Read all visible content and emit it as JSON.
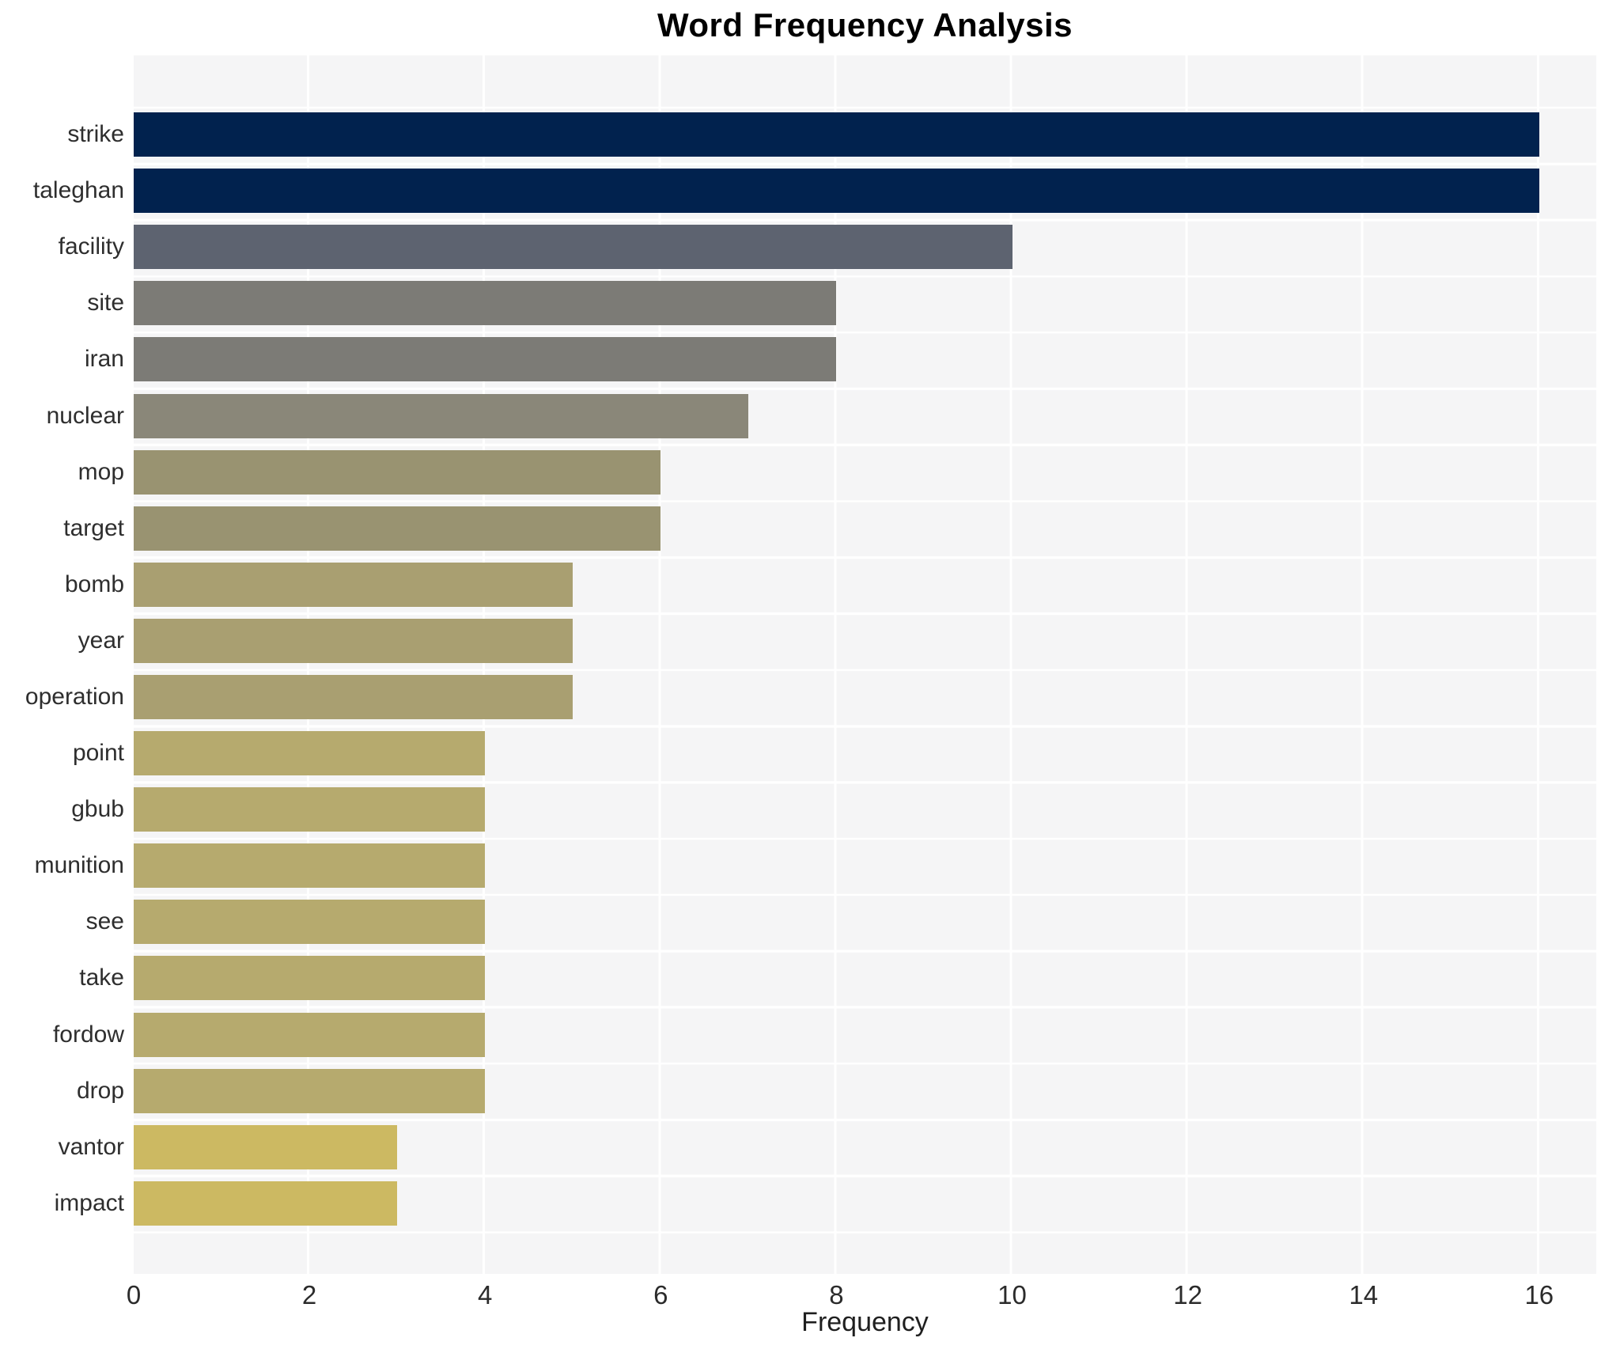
{
  "title": "Word Frequency Analysis",
  "chart_data": {
    "type": "bar",
    "orientation": "horizontal",
    "title": "Word Frequency Analysis",
    "xlabel": "Frequency",
    "ylabel": "",
    "categories": [
      "strike",
      "taleghan",
      "facility",
      "site",
      "iran",
      "nuclear",
      "mop",
      "target",
      "bomb",
      "year",
      "operation",
      "point",
      "gbub",
      "munition",
      "see",
      "take",
      "fordow",
      "drop",
      "vantor",
      "impact"
    ],
    "values": [
      16,
      16,
      10,
      8,
      8,
      7,
      6,
      6,
      5,
      5,
      5,
      4,
      4,
      4,
      4,
      4,
      4,
      4,
      3,
      3
    ],
    "bar_colors": [
      "#01224e",
      "#01224e",
      "#5d6370",
      "#7c7b76",
      "#7c7b76",
      "#8a8779",
      "#999371",
      "#999371",
      "#a99f71",
      "#a99f71",
      "#a99f71",
      "#b6aa6e",
      "#b6aa6e",
      "#b6aa6e",
      "#b6aa6e",
      "#b6aa6e",
      "#b6aa6e",
      "#b6aa6e",
      "#ccb962",
      "#ccb962"
    ],
    "xlim": [
      0,
      16.65
    ],
    "xticks": [
      0,
      2,
      4,
      6,
      8,
      10,
      12,
      14,
      16
    ],
    "grid": true,
    "legend": false,
    "plot_background": "#f5f5f6",
    "grid_color": "#ffffff",
    "colormap": "cividis-reversed"
  }
}
